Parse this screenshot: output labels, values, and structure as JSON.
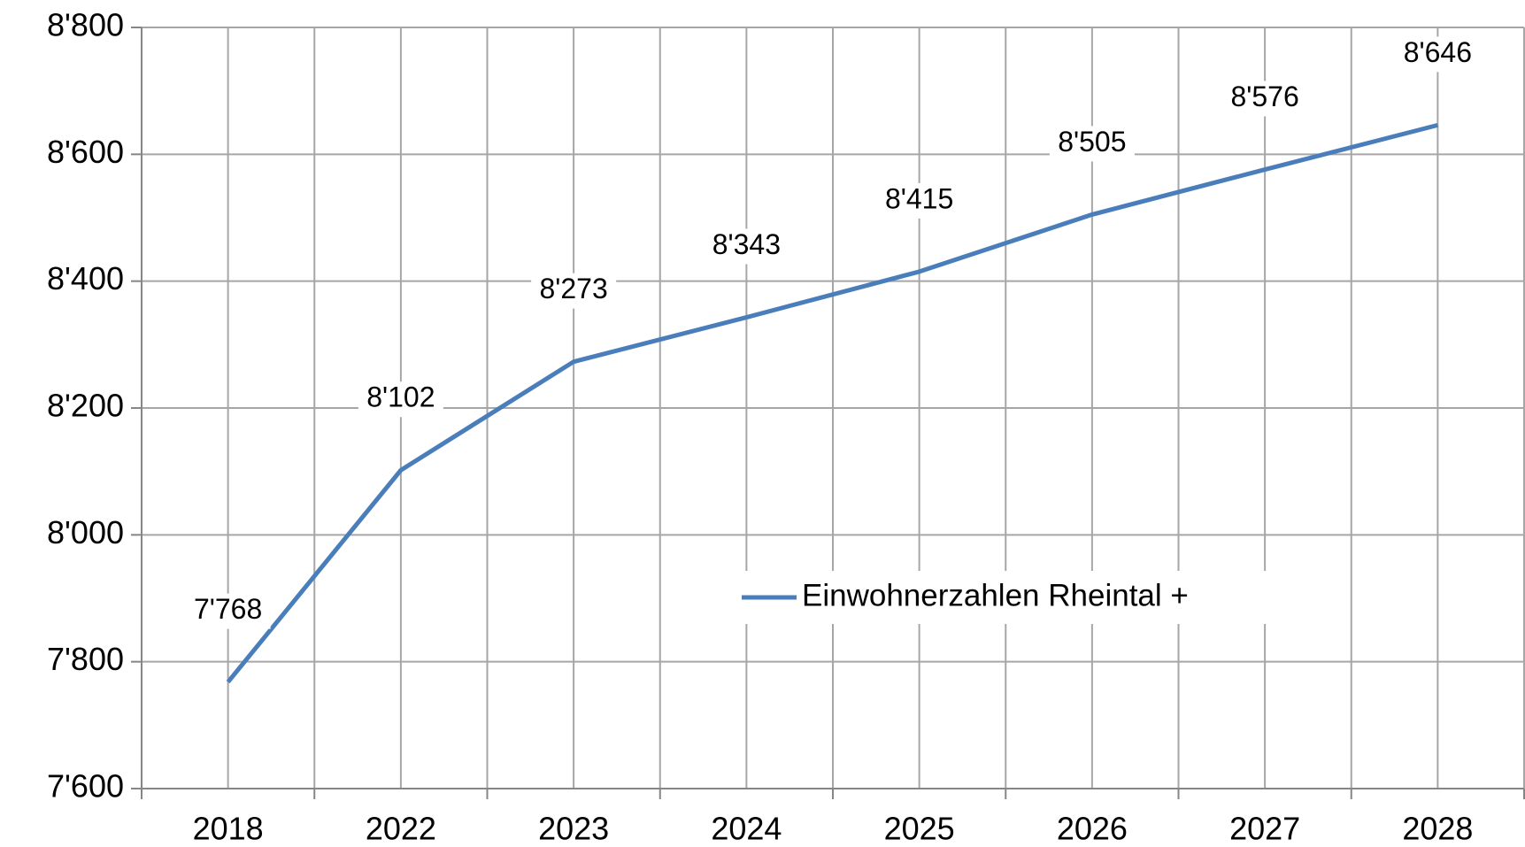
{
  "chart_data": {
    "type": "line",
    "categories": [
      "2018",
      "2022",
      "2023",
      "2024",
      "2025",
      "2026",
      "2027",
      "2028"
    ],
    "series": [
      {
        "name": "Einwohnerzahlen Rheintal +",
        "color": "#4a7ebb",
        "values": [
          7768,
          8102,
          8273,
          8343,
          8415,
          8505,
          8576,
          8646
        ],
        "value_labels": [
          "7'768",
          "8'102",
          "8'273",
          "8'343",
          "8'415",
          "8'505",
          "8'576",
          "8'646"
        ]
      }
    ],
    "ylim": [
      7600,
      8800
    ],
    "yticks": [
      {
        "value": 7600,
        "label": "7'600"
      },
      {
        "value": 7800,
        "label": "7'800"
      },
      {
        "value": 8000,
        "label": "8'000"
      },
      {
        "value": 8200,
        "label": "8'200"
      },
      {
        "value": 8400,
        "label": "8'400"
      },
      {
        "value": 8600,
        "label": "8'600"
      },
      {
        "value": 8800,
        "label": "8'800"
      }
    ],
    "grid": true,
    "legend": "center"
  }
}
